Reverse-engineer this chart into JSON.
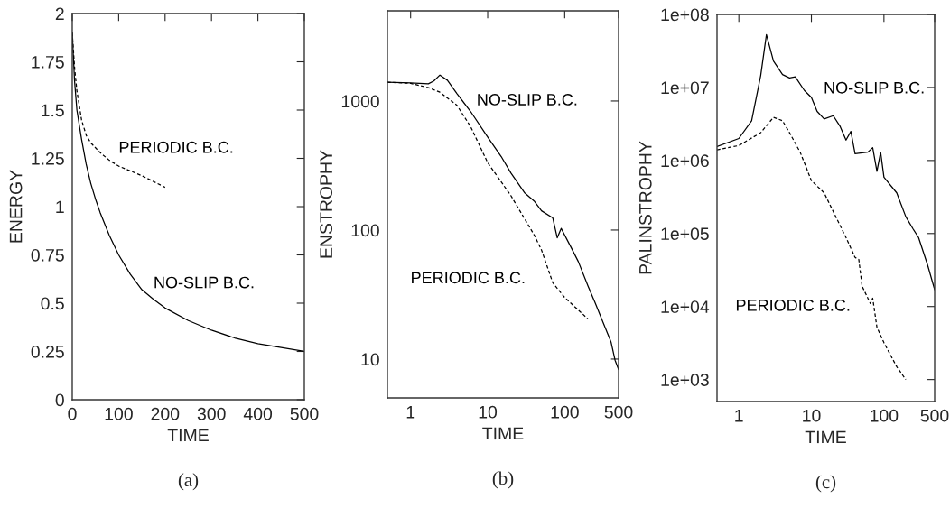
{
  "chart_data": [
    {
      "type": "line",
      "xlabel": "TIME",
      "ylabel": "ENERGY",
      "xlim": [
        0,
        500
      ],
      "ylim": [
        0,
        2
      ],
      "xticks": [
        0,
        100,
        200,
        300,
        400,
        500
      ],
      "yticks": [
        0,
        0.25,
        0.5,
        0.75,
        1,
        1.25,
        1.5,
        1.75,
        2
      ],
      "grid": false,
      "legend": false,
      "series": [
        {
          "name": "NO-SLIP B.C.",
          "color": "#000000",
          "line_style": "solid",
          "x": [
            0,
            5,
            10,
            20,
            30,
            40,
            50,
            60,
            80,
            100,
            125,
            150,
            175,
            200,
            250,
            300,
            350,
            400,
            450,
            500
          ],
          "values": [
            1.9,
            1.65,
            1.5,
            1.35,
            1.22,
            1.12,
            1.04,
            0.97,
            0.85,
            0.75,
            0.65,
            0.57,
            0.52,
            0.475,
            0.41,
            0.36,
            0.32,
            0.29,
            0.27,
            0.25
          ]
        },
        {
          "name": "PERIODIC B.C.",
          "color": "#000000",
          "line_style": "dashed",
          "x": [
            0,
            5,
            10,
            20,
            30,
            40,
            60,
            80,
            100,
            150,
            200
          ],
          "values": [
            1.9,
            1.72,
            1.6,
            1.45,
            1.37,
            1.33,
            1.28,
            1.24,
            1.21,
            1.16,
            1.1
          ]
        }
      ],
      "annotations": [
        "(a)"
      ]
    },
    {
      "type": "line",
      "log": "xy",
      "xlabel": "TIME",
      "ylabel": "ENSTROPHY",
      "xlim": [
        0.5,
        500
      ],
      "ylim": [
        5,
        5000
      ],
      "xticks": [
        1,
        10,
        100,
        500
      ],
      "yticks": [
        10,
        100,
        1000
      ],
      "grid": false,
      "legend": false,
      "series": [
        {
          "name": "NO-SLIP B.C.",
          "color": "#000000",
          "line_style": "solid",
          "x": [
            0.5,
            1,
            1.7,
            2,
            2.4,
            3,
            4,
            6,
            10,
            15,
            20,
            30,
            40,
            50,
            70,
            80,
            90,
            120,
            150,
            200,
            250,
            300,
            400,
            450,
            500
          ],
          "values": [
            1400,
            1380,
            1360,
            1430,
            1590,
            1450,
            1140,
            830,
            526,
            371,
            277,
            195,
            168,
            141,
            124,
            87,
            103,
            74,
            57,
            37,
            27,
            20.6,
            13.5,
            9.8,
            8.3
          ]
        },
        {
          "name": "PERIODIC B.C.",
          "color": "#000000",
          "line_style": "dashed",
          "x": [
            0.5,
            1,
            1.7,
            2.4,
            4,
            6,
            10,
            20,
            40,
            50,
            70,
            100,
            200
          ],
          "values": [
            1400,
            1370,
            1270,
            1170,
            925,
            634,
            333,
            185,
            92,
            70,
            39,
            30,
            20.5
          ]
        }
      ],
      "annotations": [
        "(b)"
      ]
    },
    {
      "type": "line",
      "log": "xy",
      "xlabel": "TIME",
      "ylabel": "PALINSTROPHY",
      "xlim": [
        0.5,
        500
      ],
      "ylim": [
        500,
        100000000
      ],
      "xticks": [
        1,
        10,
        100,
        500
      ],
      "yticks": [
        {
          "value": 1000,
          "label": "1e+03"
        },
        {
          "value": 10000,
          "label": "1e+04"
        },
        {
          "value": 100000,
          "label": "1e+05"
        },
        {
          "value": 1000000,
          "label": "1e+06"
        },
        {
          "value": 10000000,
          "label": "1e+07"
        },
        {
          "value": 100000000,
          "label": "1e+08"
        }
      ],
      "grid": false,
      "legend": false,
      "series": [
        {
          "name": "NO-SLIP B.C.",
          "color": "#000000",
          "line_style": "solid",
          "x": [
            0.5,
            1,
            1.5,
            2,
            2.4,
            3,
            4,
            5,
            6,
            8,
            10,
            12,
            15,
            20,
            25,
            30,
            35,
            40,
            60,
            70,
            80,
            90,
            100,
            150,
            200,
            250,
            300,
            400,
            500
          ],
          "values": [
            1550000,
            2000000,
            3500000,
            14500000,
            53000000,
            23000000,
            15000000,
            13500000,
            14000000,
            9100000,
            7300000,
            4700000,
            3700000,
            4100000,
            2900000,
            1900000,
            2500000,
            1240000,
            1300000,
            1500000,
            710000,
            1300000,
            590000,
            360000,
            170000,
            117000,
            88000,
            37000,
            17000
          ]
        },
        {
          "name": "PERIODIC B.C.",
          "color": "#000000",
          "line_style": "dashed",
          "x": [
            0.5,
            1,
            2,
            3,
            4,
            5,
            7,
            10,
            15,
            20,
            30,
            40,
            45,
            50,
            60,
            65,
            70,
            80,
            100,
            150,
            200
          ],
          "values": [
            1400000,
            1600000,
            2400000,
            3900000,
            3500000,
            2400000,
            1300000,
            530000,
            360000,
            200000,
            88000,
            47000,
            44000,
            19000,
            13000,
            11000,
            13000,
            5200,
            3200,
            1500,
            1000
          ]
        }
      ],
      "annotations": [
        "(c)"
      ]
    }
  ]
}
